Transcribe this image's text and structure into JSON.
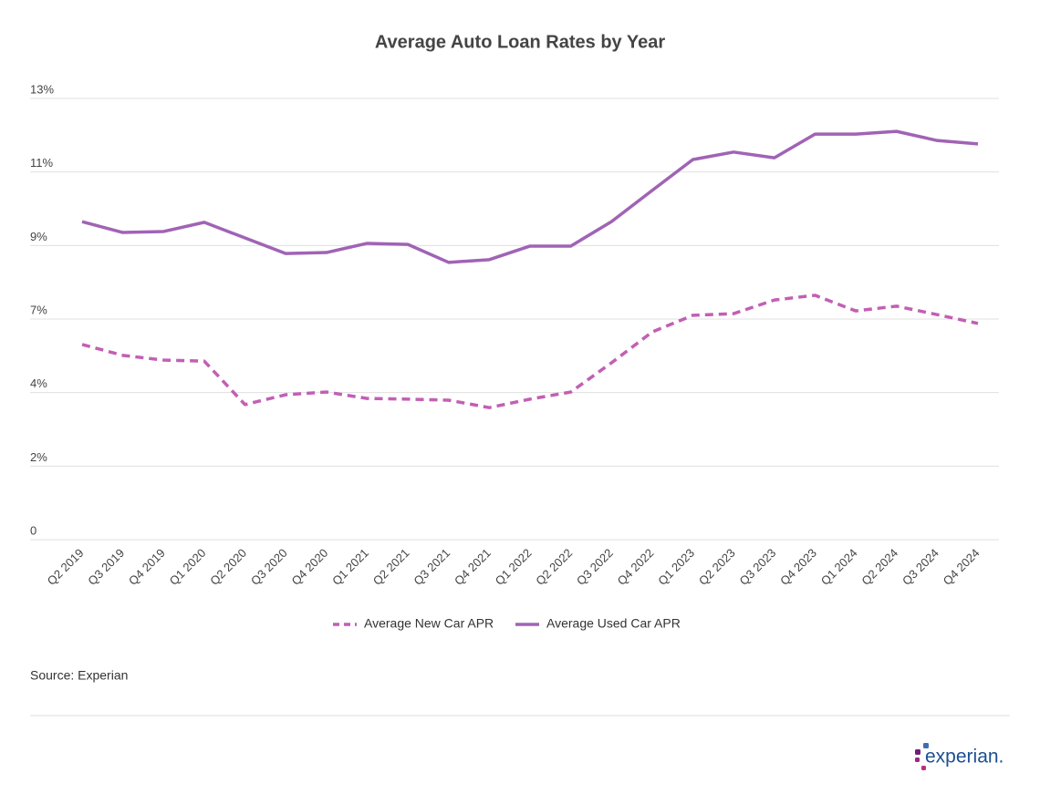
{
  "chart_data": {
    "type": "line",
    "title": "Average Auto Loan Rates by Year",
    "categories": [
      "Q2 2019",
      "Q3 2019",
      "Q4 2019",
      "Q1 2020",
      "Q2 2020",
      "Q3 2020",
      "Q4 2020",
      "Q1 2021",
      "Q2 2021",
      "Q3 2021",
      "Q4 2021",
      "Q1 2022",
      "Q2 2022",
      "Q3 2022",
      "Q4 2022",
      "Q1 2023",
      "Q2 2023",
      "Q3 2023",
      "Q4 2023",
      "Q1 2024",
      "Q2 2024",
      "Q3 2024",
      "Q4 2024"
    ],
    "series": [
      {
        "name": "Average New Car APR",
        "color": "#c25fb4",
        "dashed": true,
        "values": [
          5.75,
          5.43,
          5.29,
          5.26,
          3.98,
          4.27,
          4.35,
          4.16,
          4.14,
          4.11,
          3.89,
          4.14,
          4.35,
          5.21,
          6.12,
          6.61,
          6.66,
          7.06,
          7.2,
          6.74,
          6.88,
          6.63,
          6.37
        ]
      },
      {
        "name": "Average Used Car APR",
        "color": "#a063b5",
        "dashed": false,
        "values": [
          9.37,
          9.05,
          9.08,
          9.35,
          8.89,
          8.43,
          8.46,
          8.73,
          8.7,
          8.17,
          8.25,
          8.65,
          8.65,
          9.37,
          10.29,
          11.2,
          11.42,
          11.25,
          11.95,
          11.95,
          12.03,
          11.76,
          11.66
        ]
      }
    ],
    "ylim": [
      0,
      13
    ],
    "yticks": [
      0,
      {
        "value": 2.1667,
        "label": "2%"
      },
      {
        "value": 4.3333,
        "label": "4%"
      },
      {
        "value": 6.5,
        "label": "7%"
      },
      {
        "value": 8.6667,
        "label": "9%"
      },
      {
        "value": 10.8333,
        "label": "11%"
      },
      {
        "value": 13,
        "label": "13%"
      }
    ],
    "grid": true,
    "legend": "bottom",
    "source": "Source: Experian"
  },
  "logo": "experian."
}
